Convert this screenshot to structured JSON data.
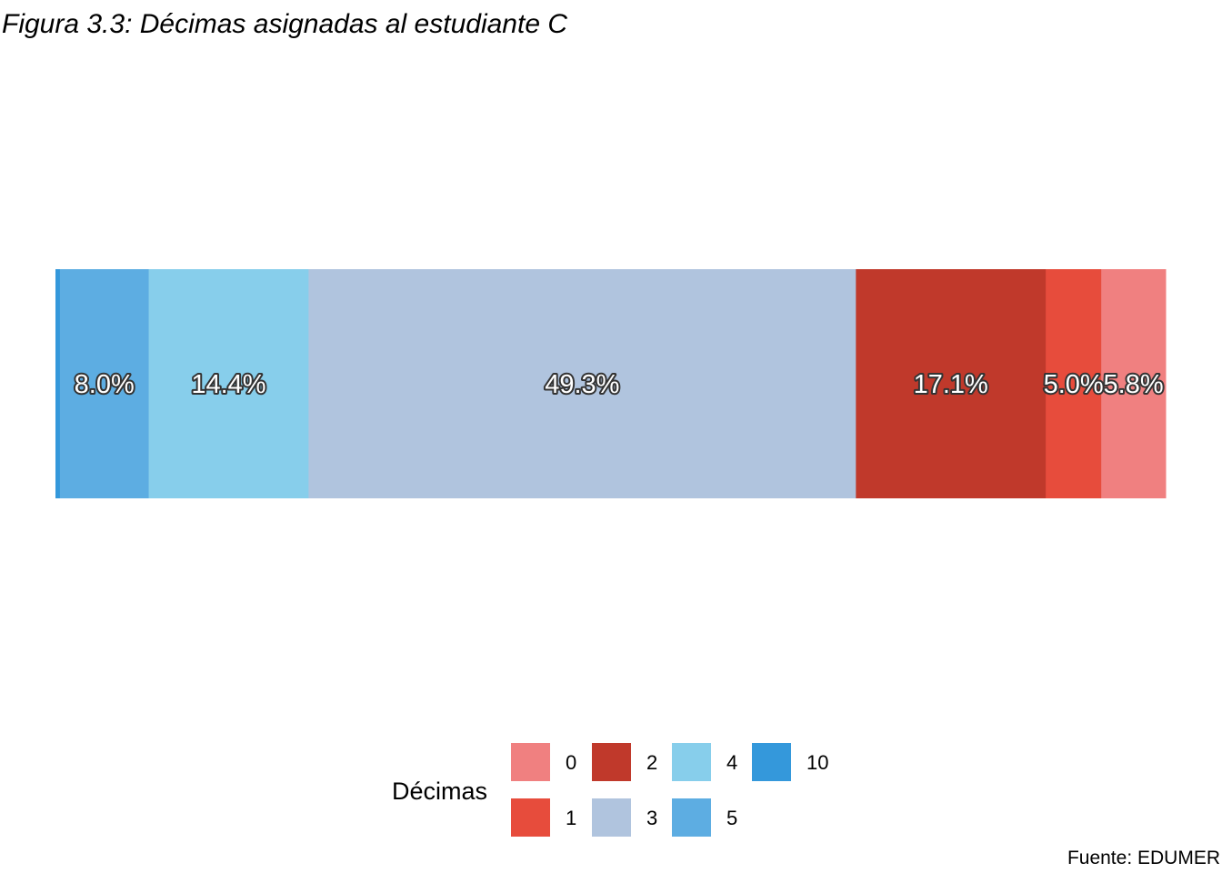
{
  "caption": "Fuente: EDUMER",
  "chart_data": {
    "type": "bar",
    "orientation": "horizontal-stacked-100",
    "title": "Figura 3.3: Décimas asignadas al estudiante C",
    "legend_title": "Décimas",
    "legend_position": "bottom",
    "grid": false,
    "segments": [
      {
        "category": "10",
        "value": 0.4,
        "label": "",
        "color": "#3498db"
      },
      {
        "category": "5",
        "value": 8.0,
        "label": "8.0%",
        "color": "#5dade2"
      },
      {
        "category": "4",
        "value": 14.4,
        "label": "14.4%",
        "color": "#87ceeb"
      },
      {
        "category": "3",
        "value": 49.3,
        "label": "49.3%",
        "color": "#b0c4de"
      },
      {
        "category": "2",
        "value": 17.1,
        "label": "17.1%",
        "color": "#c0392b"
      },
      {
        "category": "1",
        "value": 5.0,
        "label": "5.0%",
        "color": "#e74c3c"
      },
      {
        "category": "0",
        "value": 5.8,
        "label": "5.8%",
        "color": "#f08080"
      }
    ],
    "legend": [
      {
        "label": "0",
        "color": "#f08080"
      },
      {
        "label": "1",
        "color": "#e74c3c"
      },
      {
        "label": "2",
        "color": "#c0392b"
      },
      {
        "label": "3",
        "color": "#b0c4de"
      },
      {
        "label": "4",
        "color": "#87ceeb"
      },
      {
        "label": "5",
        "color": "#5dade2"
      },
      {
        "label": "10",
        "color": "#3498db"
      }
    ]
  }
}
